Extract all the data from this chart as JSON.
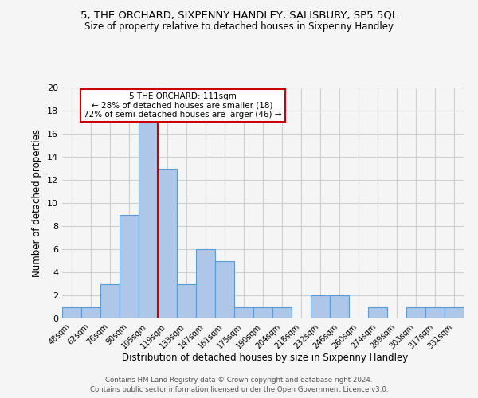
{
  "title": "5, THE ORCHARD, SIXPENNY HANDLEY, SALISBURY, SP5 5QL",
  "subtitle": "Size of property relative to detached houses in Sixpenny Handley",
  "xlabel": "Distribution of detached houses by size in Sixpenny Handley",
  "ylabel": "Number of detached properties",
  "bin_labels": [
    "48sqm",
    "62sqm",
    "76sqm",
    "90sqm",
    "105sqm",
    "119sqm",
    "133sqm",
    "147sqm",
    "161sqm",
    "175sqm",
    "190sqm",
    "204sqm",
    "218sqm",
    "232sqm",
    "246sqm",
    "260sqm",
    "274sqm",
    "289sqm",
    "303sqm",
    "317sqm",
    "331sqm"
  ],
  "bar_heights": [
    1,
    1,
    3,
    9,
    17,
    13,
    3,
    6,
    5,
    1,
    1,
    1,
    0,
    2,
    2,
    0,
    1,
    0,
    1,
    1,
    1
  ],
  "bar_color": "#aec6e8",
  "bar_edge_color": "#5b9bd5",
  "grid_color": "#d0d0d0",
  "background_color": "#f5f5f5",
  "vline_x": 4.5,
  "vline_color": "#cc0000",
  "annotation_text": "5 THE ORCHARD: 111sqm\n← 28% of detached houses are smaller (18)\n72% of semi-detached houses are larger (46) →",
  "annotation_box_color": "#ffffff",
  "annotation_box_edge": "#cc0000",
  "ylim": [
    0,
    20
  ],
  "yticks": [
    0,
    2,
    4,
    6,
    8,
    10,
    12,
    14,
    16,
    18,
    20
  ],
  "footnote1": "Contains HM Land Registry data © Crown copyright and database right 2024.",
  "footnote2": "Contains public sector information licensed under the Open Government Licence v3.0."
}
